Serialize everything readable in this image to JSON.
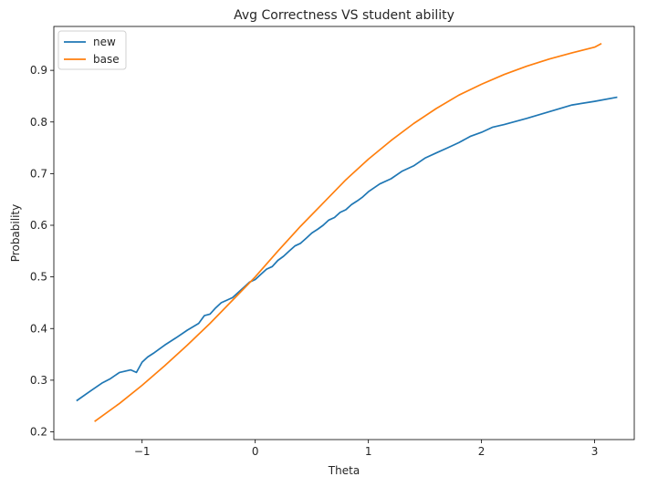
{
  "chart_data": {
    "type": "line",
    "title": "Avg Correctness VS student ability",
    "xlabel": "Theta",
    "ylabel": "Probability",
    "xlim": [
      -1.78,
      3.35
    ],
    "ylim": [
      0.185,
      0.985
    ],
    "xticks": [
      -1,
      0,
      1,
      2,
      3
    ],
    "xtick_labels": [
      "−1",
      "0",
      "1",
      "2",
      "3"
    ],
    "yticks": [
      0.2,
      0.3,
      0.4,
      0.5,
      0.6,
      0.7,
      0.8,
      0.9
    ],
    "ytick_labels": [
      "0.2",
      "0.3",
      "0.4",
      "0.5",
      "0.6",
      "0.7",
      "0.8",
      "0.9"
    ],
    "grid": false,
    "legend_position": "top-left",
    "series": [
      {
        "name": "new",
        "color": "#1f77b4",
        "x": [
          -1.58,
          -1.45,
          -1.35,
          -1.28,
          -1.2,
          -1.1,
          -1.05,
          -1.0,
          -0.95,
          -0.9,
          -0.8,
          -0.7,
          -0.6,
          -0.5,
          -0.45,
          -0.4,
          -0.35,
          -0.3,
          -0.25,
          -0.2,
          -0.15,
          -0.1,
          -0.05,
          0.0,
          0.05,
          0.1,
          0.15,
          0.2,
          0.25,
          0.3,
          0.35,
          0.4,
          0.45,
          0.5,
          0.55,
          0.6,
          0.65,
          0.7,
          0.75,
          0.8,
          0.85,
          0.9,
          0.95,
          1.0,
          1.1,
          1.2,
          1.3,
          1.4,
          1.5,
          1.6,
          1.7,
          1.8,
          1.9,
          2.0,
          2.1,
          2.2,
          2.4,
          2.6,
          2.8,
          3.0,
          3.2
        ],
        "y": [
          0.26,
          0.28,
          0.295,
          0.303,
          0.315,
          0.32,
          0.315,
          0.335,
          0.345,
          0.352,
          0.368,
          0.382,
          0.397,
          0.41,
          0.425,
          0.428,
          0.44,
          0.45,
          0.455,
          0.46,
          0.47,
          0.48,
          0.49,
          0.495,
          0.505,
          0.515,
          0.52,
          0.532,
          0.54,
          0.55,
          0.56,
          0.565,
          0.575,
          0.585,
          0.592,
          0.6,
          0.61,
          0.615,
          0.625,
          0.63,
          0.64,
          0.647,
          0.655,
          0.665,
          0.68,
          0.69,
          0.705,
          0.715,
          0.73,
          0.74,
          0.75,
          0.76,
          0.772,
          0.78,
          0.79,
          0.795,
          0.807,
          0.82,
          0.833,
          0.84,
          0.848
        ]
      },
      {
        "name": "base",
        "color": "#ff7f0e",
        "x": [
          -1.42,
          -1.2,
          -1.0,
          -0.8,
          -0.6,
          -0.4,
          -0.2,
          0.0,
          0.2,
          0.4,
          0.6,
          0.8,
          1.0,
          1.2,
          1.4,
          1.6,
          1.8,
          2.0,
          2.2,
          2.4,
          2.6,
          2.8,
          3.0,
          3.06
        ],
        "y": [
          0.22,
          0.255,
          0.29,
          0.328,
          0.368,
          0.41,
          0.455,
          0.5,
          0.55,
          0.598,
          0.643,
          0.688,
          0.728,
          0.764,
          0.797,
          0.826,
          0.852,
          0.873,
          0.892,
          0.908,
          0.922,
          0.934,
          0.945,
          0.952
        ]
      }
    ]
  }
}
